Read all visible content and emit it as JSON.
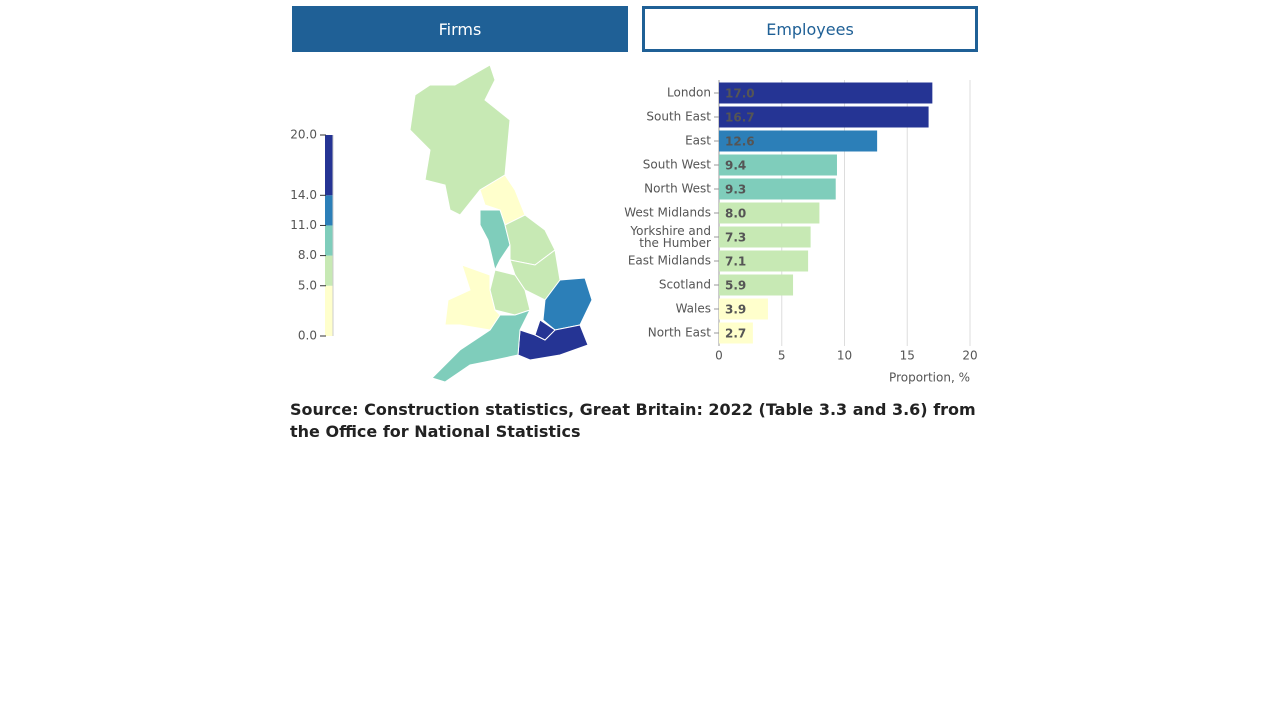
{
  "tabs": [
    "Firms",
    "Employees"
  ],
  "chart_data": {
    "type": "bar",
    "categories": [
      "London",
      "South East",
      "East",
      "South West",
      "North West",
      "West Midlands",
      "Yorkshire and the Humber",
      "East Midlands",
      "Scotland",
      "Wales",
      "North East"
    ],
    "values": [
      17.0,
      16.7,
      12.6,
      9.4,
      9.3,
      8.0,
      7.3,
      7.1,
      5.9,
      3.9,
      2.7
    ],
    "value_labels": [
      "17.0",
      "16.7",
      "12.6",
      "9.4",
      "9.3",
      "8.0",
      "7.3",
      "7.1",
      "5.9",
      "3.9",
      "2.7"
    ],
    "xlim": [
      0,
      20
    ],
    "xticks": [
      0,
      5,
      10,
      15,
      20
    ],
    "xlabel": "Proportion, %",
    "grid": true,
    "color_scale": {
      "ticks": [
        {
          "value": 0,
          "label": "0.0"
        },
        {
          "value": 5,
          "label": "5.0"
        },
        {
          "value": 8,
          "label": "8.0"
        },
        {
          "value": 11,
          "label": "11.0"
        },
        {
          "value": 14,
          "label": "14.0"
        },
        {
          "value": 20,
          "label": "20.0"
        }
      ],
      "colors": [
        "#ffffcc",
        "#c7e9b4",
        "#7fcdbb",
        "#2c7fb8",
        "#253494"
      ]
    }
  },
  "source": "Source: Construction statistics, Great Britain: 2022 (Table 3.3 and 3.6) from the Office for National Statistics"
}
